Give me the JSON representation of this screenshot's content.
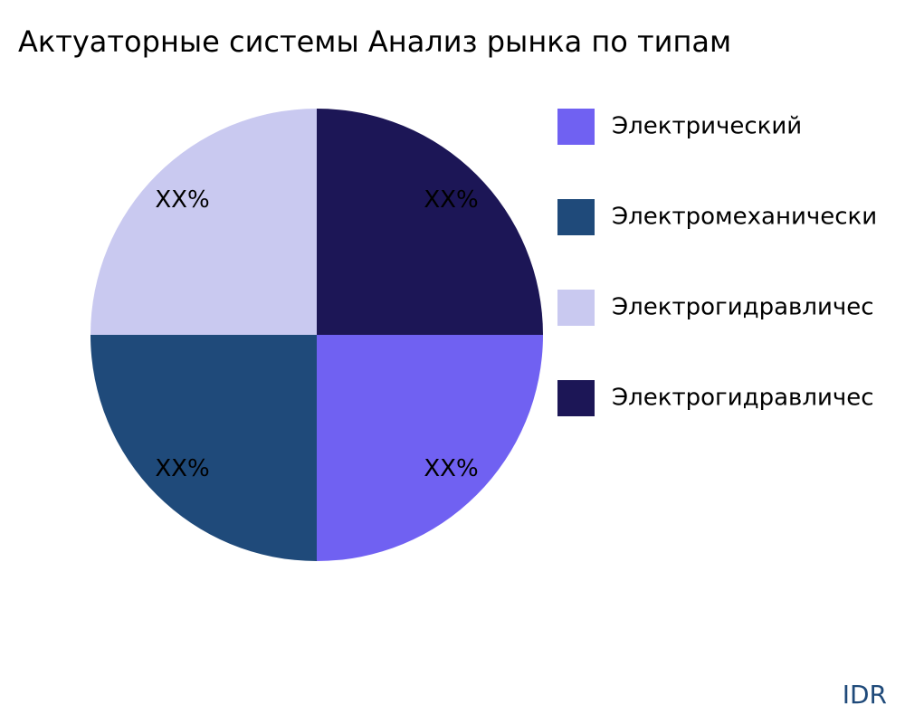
{
  "chart_data": {
    "type": "pie",
    "title": "Актуаторные системы Анализ рынка по типам",
    "categories": [
      "Электрический",
      "Электромеханически",
      "Электрогидравличес",
      "Электрогидравличес"
    ],
    "values": [
      25,
      25,
      25,
      25
    ],
    "value_labels": [
      "XX%",
      "XX%",
      "XX%",
      "XX%"
    ],
    "colors": [
      "#7061f2",
      "#1f4a7a",
      "#c9c9f0",
      "#1c1656"
    ],
    "watermark": "IDR"
  }
}
